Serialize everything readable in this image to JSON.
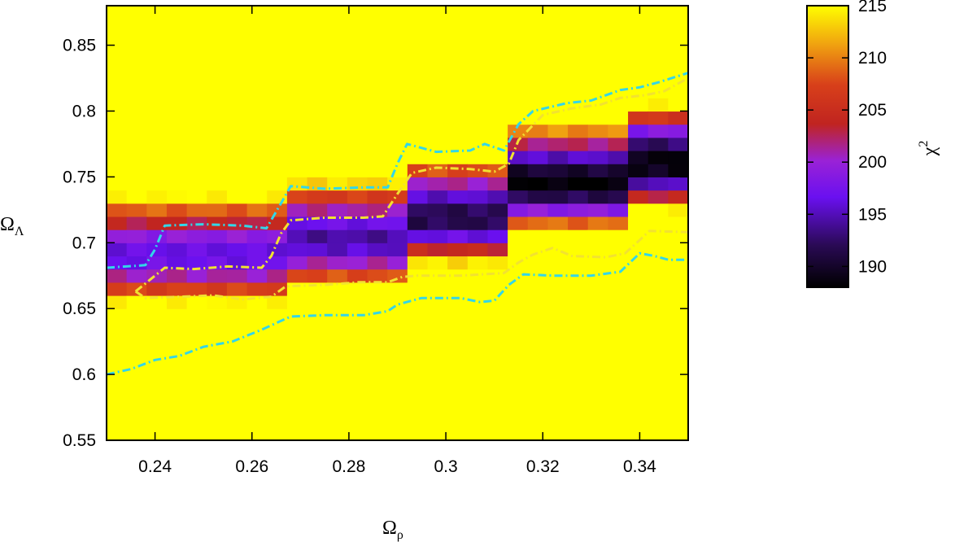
{
  "chart_data": {
    "type": "heatmap",
    "xlabel": "Ωρ",
    "ylabel": "ΩΛ",
    "colorbar_label": "χ2",
    "xlim": [
      0.23,
      0.35
    ],
    "ylim": [
      0.55,
      0.88
    ],
    "xticks": [
      0.24,
      0.26,
      0.28,
      0.3,
      0.32,
      0.34
    ],
    "xtick_labels": [
      "0.24",
      "0.26",
      "0.28",
      "0.3",
      "0.32",
      "0.34"
    ],
    "yticks": [
      0.55,
      0.6,
      0.65,
      0.7,
      0.75,
      0.8,
      0.85
    ],
    "ytick_labels": [
      "0.55",
      "0.6",
      "0.65",
      "0.7",
      "0.75",
      "0.8",
      "0.85"
    ],
    "colorbar_range": [
      188,
      215
    ],
    "colorbar_ticks": [
      190,
      195,
      200,
      205,
      210,
      215
    ],
    "colorbar_tick_labels": [
      "190",
      "195",
      "200",
      "205",
      "210",
      "215"
    ],
    "grid": {
      "nx": 29,
      "ny": 33,
      "x_start": 0.23,
      "dx": 0.004138,
      "y_start": 0.55,
      "dy": 0.01
    },
    "chi2_model": {
      "ridge_steps": [
        {
          "x0": 0.23,
          "x1": 0.2638,
          "y": 0.69
        },
        {
          "x0": 0.2672,
          "x1": 0.2893,
          "y": 0.702
        },
        {
          "x0": 0.2927,
          "x1": 0.3122,
          "y": 0.719
        },
        {
          "x0": 0.3155,
          "x1": 0.3377,
          "y": 0.745
        },
        {
          "x0": 0.3411,
          "x1": 0.35,
          "y": 0.76
        }
      ],
      "minimum": 188,
      "floor_by_step": [
        196,
        194,
        191,
        188,
        188
      ],
      "width_below": 0.035,
      "width_above": 0.045,
      "cap": 215
    },
    "contours": [
      {
        "name": "outer",
        "color": "#33d6e8",
        "style": "dash-dot",
        "points": [
          [
            0.23,
            0.6
          ],
          [
            0.235,
            0.604
          ],
          [
            0.24,
            0.611
          ],
          [
            0.245,
            0.614
          ],
          [
            0.25,
            0.621
          ],
          [
            0.256,
            0.625
          ],
          [
            0.262,
            0.634
          ],
          [
            0.265,
            0.639
          ],
          [
            0.268,
            0.644
          ],
          [
            0.275,
            0.645
          ],
          [
            0.283,
            0.645
          ],
          [
            0.288,
            0.648
          ],
          [
            0.29,
            0.653
          ],
          [
            0.295,
            0.658
          ],
          [
            0.303,
            0.658
          ],
          [
            0.307,
            0.655
          ],
          [
            0.31,
            0.656
          ],
          [
            0.313,
            0.668
          ],
          [
            0.316,
            0.676
          ],
          [
            0.322,
            0.675
          ],
          [
            0.33,
            0.675
          ],
          [
            0.336,
            0.678
          ],
          [
            0.34,
            0.692
          ],
          [
            0.343,
            0.69
          ],
          [
            0.346,
            0.687
          ],
          [
            0.35,
            0.687
          ]
        ],
        "points_upper": [
          [
            0.23,
            0.681
          ],
          [
            0.238,
            0.683
          ],
          [
            0.24,
            0.695
          ],
          [
            0.242,
            0.713
          ],
          [
            0.25,
            0.714
          ],
          [
            0.258,
            0.713
          ],
          [
            0.263,
            0.711
          ],
          [
            0.266,
            0.73
          ],
          [
            0.268,
            0.743
          ],
          [
            0.275,
            0.741
          ],
          [
            0.283,
            0.742
          ],
          [
            0.288,
            0.742
          ],
          [
            0.29,
            0.76
          ],
          [
            0.292,
            0.775
          ],
          [
            0.298,
            0.769
          ],
          [
            0.305,
            0.77
          ],
          [
            0.308,
            0.775
          ],
          [
            0.312,
            0.77
          ],
          [
            0.315,
            0.79
          ],
          [
            0.318,
            0.8
          ],
          [
            0.325,
            0.806
          ],
          [
            0.33,
            0.808
          ],
          [
            0.336,
            0.816
          ],
          [
            0.34,
            0.818
          ],
          [
            0.344,
            0.822
          ],
          [
            0.35,
            0.829
          ]
        ]
      },
      {
        "name": "inner",
        "color": "#f2e230",
        "style": "dash-dot",
        "points": [
          [
            0.236,
            0.663
          ],
          [
            0.238,
            0.658
          ],
          [
            0.245,
            0.659
          ],
          [
            0.252,
            0.66
          ],
          [
            0.258,
            0.657
          ],
          [
            0.264,
            0.659
          ],
          [
            0.267,
            0.667
          ],
          [
            0.275,
            0.668
          ],
          [
            0.282,
            0.67
          ],
          [
            0.288,
            0.67
          ],
          [
            0.291,
            0.674
          ],
          [
            0.294,
            0.675
          ],
          [
            0.303,
            0.675
          ],
          [
            0.312,
            0.677
          ],
          [
            0.315,
            0.685
          ],
          [
            0.318,
            0.691
          ],
          [
            0.322,
            0.696
          ],
          [
            0.326,
            0.69
          ],
          [
            0.333,
            0.689
          ],
          [
            0.337,
            0.692
          ],
          [
            0.34,
            0.702
          ],
          [
            0.342,
            0.709
          ],
          [
            0.35,
            0.708
          ]
        ],
        "points_upper": [
          [
            0.236,
            0.663
          ],
          [
            0.239,
            0.672
          ],
          [
            0.242,
            0.681
          ],
          [
            0.248,
            0.68
          ],
          [
            0.255,
            0.682
          ],
          [
            0.262,
            0.681
          ],
          [
            0.264,
            0.69
          ],
          [
            0.266,
            0.707
          ],
          [
            0.268,
            0.717
          ],
          [
            0.275,
            0.719
          ],
          [
            0.283,
            0.719
          ],
          [
            0.287,
            0.72
          ],
          [
            0.29,
            0.737
          ],
          [
            0.293,
            0.753
          ],
          [
            0.298,
            0.757
          ],
          [
            0.305,
            0.756
          ],
          [
            0.31,
            0.754
          ],
          [
            0.313,
            0.76
          ],
          [
            0.315,
            0.778
          ],
          [
            0.32,
            0.797
          ],
          [
            0.326,
            0.802
          ],
          [
            0.332,
            0.805
          ],
          [
            0.336,
            0.81
          ],
          [
            0.341,
            0.812
          ],
          [
            0.345,
            0.815
          ],
          [
            0.35,
            0.825
          ]
        ]
      }
    ]
  }
}
